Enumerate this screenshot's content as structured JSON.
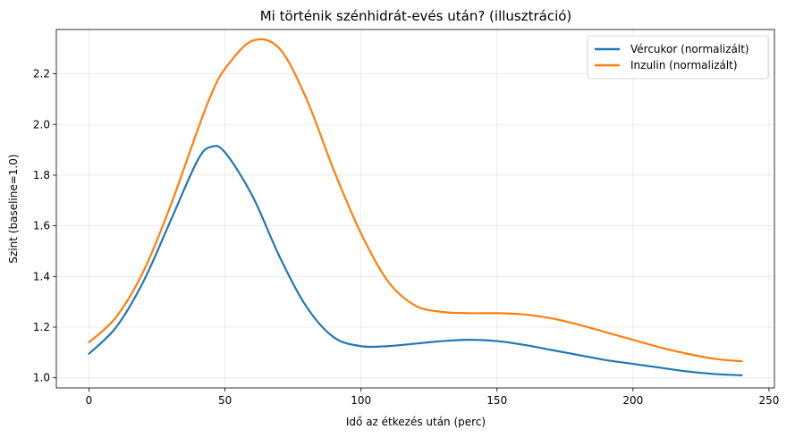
{
  "chart_data": {
    "type": "line",
    "title": "Mi történik szénhidrát-evés után? (illusztráció)",
    "xlabel": "Idő az étkezés után (perc)",
    "ylabel": "Szint (baseline=1.0)",
    "xlim": [
      -12,
      252
    ],
    "ylim": [
      0.96,
      2.375
    ],
    "xticks": [
      0,
      50,
      100,
      150,
      200,
      250
    ],
    "yticks": [
      1.0,
      1.2,
      1.4,
      1.6,
      1.8,
      2.0,
      2.2
    ],
    "ytick_labels": [
      "1.0",
      "1.2",
      "1.4",
      "1.6",
      "1.8",
      "2.0",
      "2.2"
    ],
    "grid": true,
    "legend_position": "upper right",
    "x": [
      0,
      10,
      20,
      30,
      40,
      45,
      50,
      60,
      70,
      80,
      90,
      100,
      110,
      120,
      130,
      140,
      150,
      160,
      170,
      180,
      190,
      200,
      210,
      220,
      230,
      240
    ],
    "series": [
      {
        "name": "Vércukor (normalizált)",
        "color": "#1f77b4",
        "values": [
          1.095,
          1.2,
          1.38,
          1.62,
          1.86,
          1.912,
          1.89,
          1.72,
          1.48,
          1.28,
          1.16,
          1.125,
          1.125,
          1.135,
          1.145,
          1.15,
          1.145,
          1.13,
          1.11,
          1.09,
          1.07,
          1.055,
          1.04,
          1.025,
          1.015,
          1.01
        ]
      },
      {
        "name": "Inzulin (normalizált)",
        "color": "#ff7f0e",
        "values": [
          1.14,
          1.24,
          1.42,
          1.68,
          1.98,
          2.12,
          2.22,
          2.33,
          2.3,
          2.1,
          1.82,
          1.57,
          1.38,
          1.285,
          1.26,
          1.255,
          1.255,
          1.25,
          1.235,
          1.21,
          1.18,
          1.15,
          1.12,
          1.095,
          1.075,
          1.065
        ]
      }
    ]
  }
}
